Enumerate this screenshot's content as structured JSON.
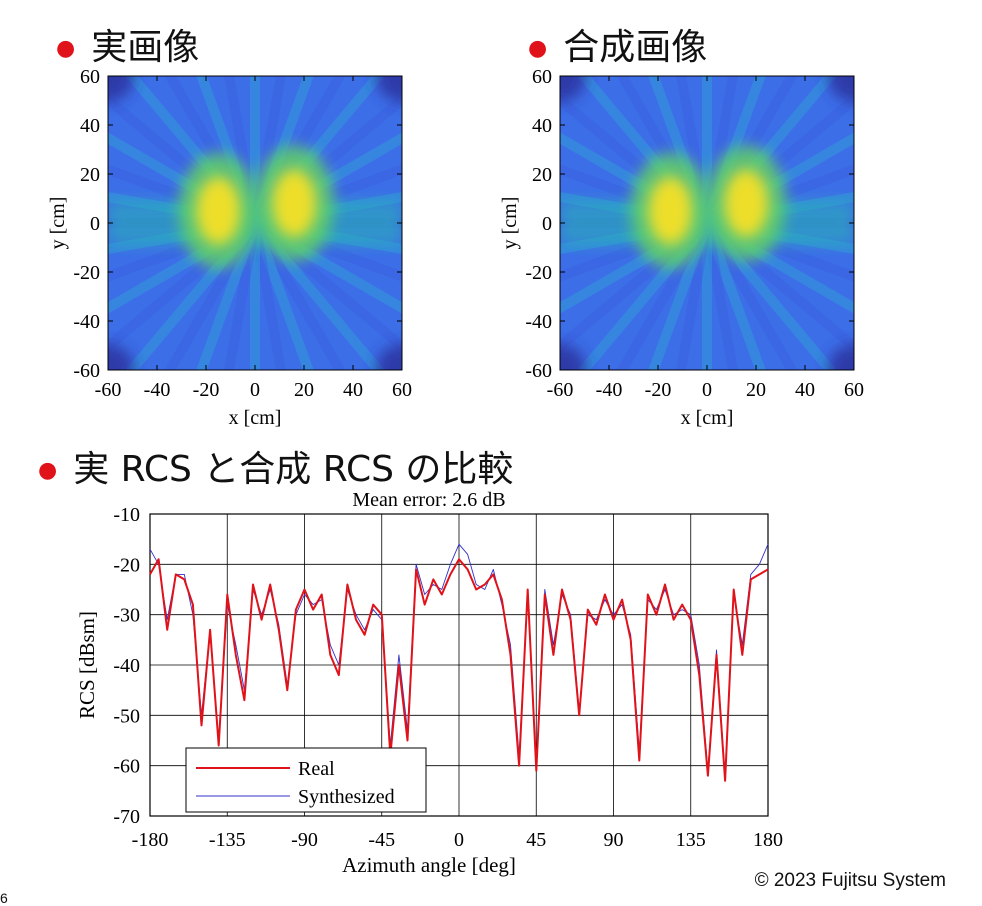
{
  "headings": {
    "real_image": "実画像",
    "synth_image": "合成画像",
    "rcs_compare": "実 RCS と合成 RCS の比較"
  },
  "footer": {
    "copyright": "© 2023 Fujitsu System",
    "page_number": "6"
  },
  "colors": {
    "bullet": "#e0131a",
    "real_line": "#e0131a",
    "synth_line": "#3030c8"
  },
  "chart_data": [
    {
      "type": "heatmap",
      "title": "",
      "xlabel": "x [cm]",
      "ylabel": "y [cm]",
      "xlim": [
        -60,
        60
      ],
      "ylim": [
        -60,
        60
      ],
      "xticks": [
        "-60",
        "-40",
        "-20",
        "0",
        "20",
        "40",
        "60"
      ],
      "yticks": [
        "60",
        "40",
        "20",
        "0",
        "-20",
        "-40",
        "-60"
      ],
      "colormap": "parula",
      "hotspots": [
        {
          "x": -15,
          "y": 5,
          "level": "high"
        },
        {
          "x": 16,
          "y": 8,
          "level": "high"
        }
      ]
    },
    {
      "type": "heatmap",
      "title": "",
      "xlabel": "x [cm]",
      "ylabel": "y [cm]",
      "xlim": [
        -60,
        60
      ],
      "ylim": [
        -60,
        60
      ],
      "xticks": [
        "-60",
        "-40",
        "-20",
        "0",
        "20",
        "40",
        "60"
      ],
      "yticks": [
        "60",
        "40",
        "20",
        "0",
        "-20",
        "-40",
        "-60"
      ],
      "colormap": "parula",
      "hotspots": [
        {
          "x": -15,
          "y": 5,
          "level": "high"
        },
        {
          "x": 16,
          "y": 8,
          "level": "high"
        }
      ]
    },
    {
      "type": "line",
      "title": "Mean error: 2.6 dB",
      "xlabel": "Azimuth angle [deg]",
      "ylabel": "RCS [dBsm]",
      "xlim": [
        -180,
        180
      ],
      "ylim": [
        -70,
        -10
      ],
      "xticks": [
        "-180",
        "-135",
        "-90",
        "-45",
        "0",
        "45",
        "90",
        "135",
        "180"
      ],
      "yticks": [
        "-10",
        "-20",
        "-30",
        "-40",
        "-50",
        "-60",
        "-70"
      ],
      "grid": true,
      "legend_position": "bottom-left",
      "x": [
        -180,
        -175,
        -170,
        -165,
        -160,
        -155,
        -150,
        -145,
        -140,
        -135,
        -130,
        -125,
        -120,
        -115,
        -110,
        -105,
        -100,
        -95,
        -90,
        -85,
        -80,
        -75,
        -70,
        -65,
        -60,
        -55,
        -50,
        -45,
        -40,
        -35,
        -30,
        -25,
        -20,
        -15,
        -10,
        -5,
        0,
        5,
        10,
        15,
        20,
        25,
        30,
        35,
        40,
        45,
        50,
        55,
        60,
        65,
        70,
        75,
        80,
        85,
        90,
        95,
        100,
        105,
        110,
        115,
        120,
        125,
        130,
        135,
        140,
        145,
        150,
        155,
        160,
        165,
        170,
        175,
        180
      ],
      "series": [
        {
          "name": "Real",
          "values": [
            -22,
            -19,
            -33,
            -22,
            -23,
            -28,
            -52,
            -33,
            -56,
            -26,
            -38,
            -47,
            -24,
            -31,
            -24,
            -33,
            -45,
            -29,
            -25,
            -29,
            -26,
            -38,
            -42,
            -24,
            -31,
            -34,
            -28,
            -30,
            -58,
            -40,
            -55,
            -21,
            -28,
            -23,
            -26,
            -22,
            -19,
            -21,
            -25,
            -24,
            -22,
            -27,
            -38,
            -60,
            -25,
            -61,
            -26,
            -38,
            -25,
            -31,
            -50,
            -29,
            -32,
            -26,
            -31,
            -27,
            -35,
            -59,
            -26,
            -30,
            -24,
            -31,
            -28,
            -31,
            -42,
            -62,
            -38,
            -63,
            -25,
            -38,
            -23,
            -22,
            -21
          ]
        },
        {
          "name": "Synthesized",
          "values": [
            -17,
            -20,
            -31,
            -22,
            -22,
            -30,
            -50,
            -33,
            -55,
            -28,
            -36,
            -45,
            -25,
            -30,
            -25,
            -32,
            -44,
            -30,
            -26,
            -28,
            -27,
            -36,
            -40,
            -25,
            -30,
            -33,
            -29,
            -31,
            -56,
            -38,
            -53,
            -20,
            -26,
            -24,
            -25,
            -20,
            -16,
            -18,
            -24,
            -25,
            -21,
            -28,
            -36,
            -58,
            -26,
            -60,
            -25,
            -36,
            -26,
            -30,
            -49,
            -30,
            -31,
            -27,
            -30,
            -28,
            -34,
            -57,
            -27,
            -29,
            -25,
            -30,
            -29,
            -30,
            -40,
            -61,
            -37,
            -62,
            -26,
            -36,
            -22,
            -20,
            -16
          ]
        }
      ]
    }
  ]
}
